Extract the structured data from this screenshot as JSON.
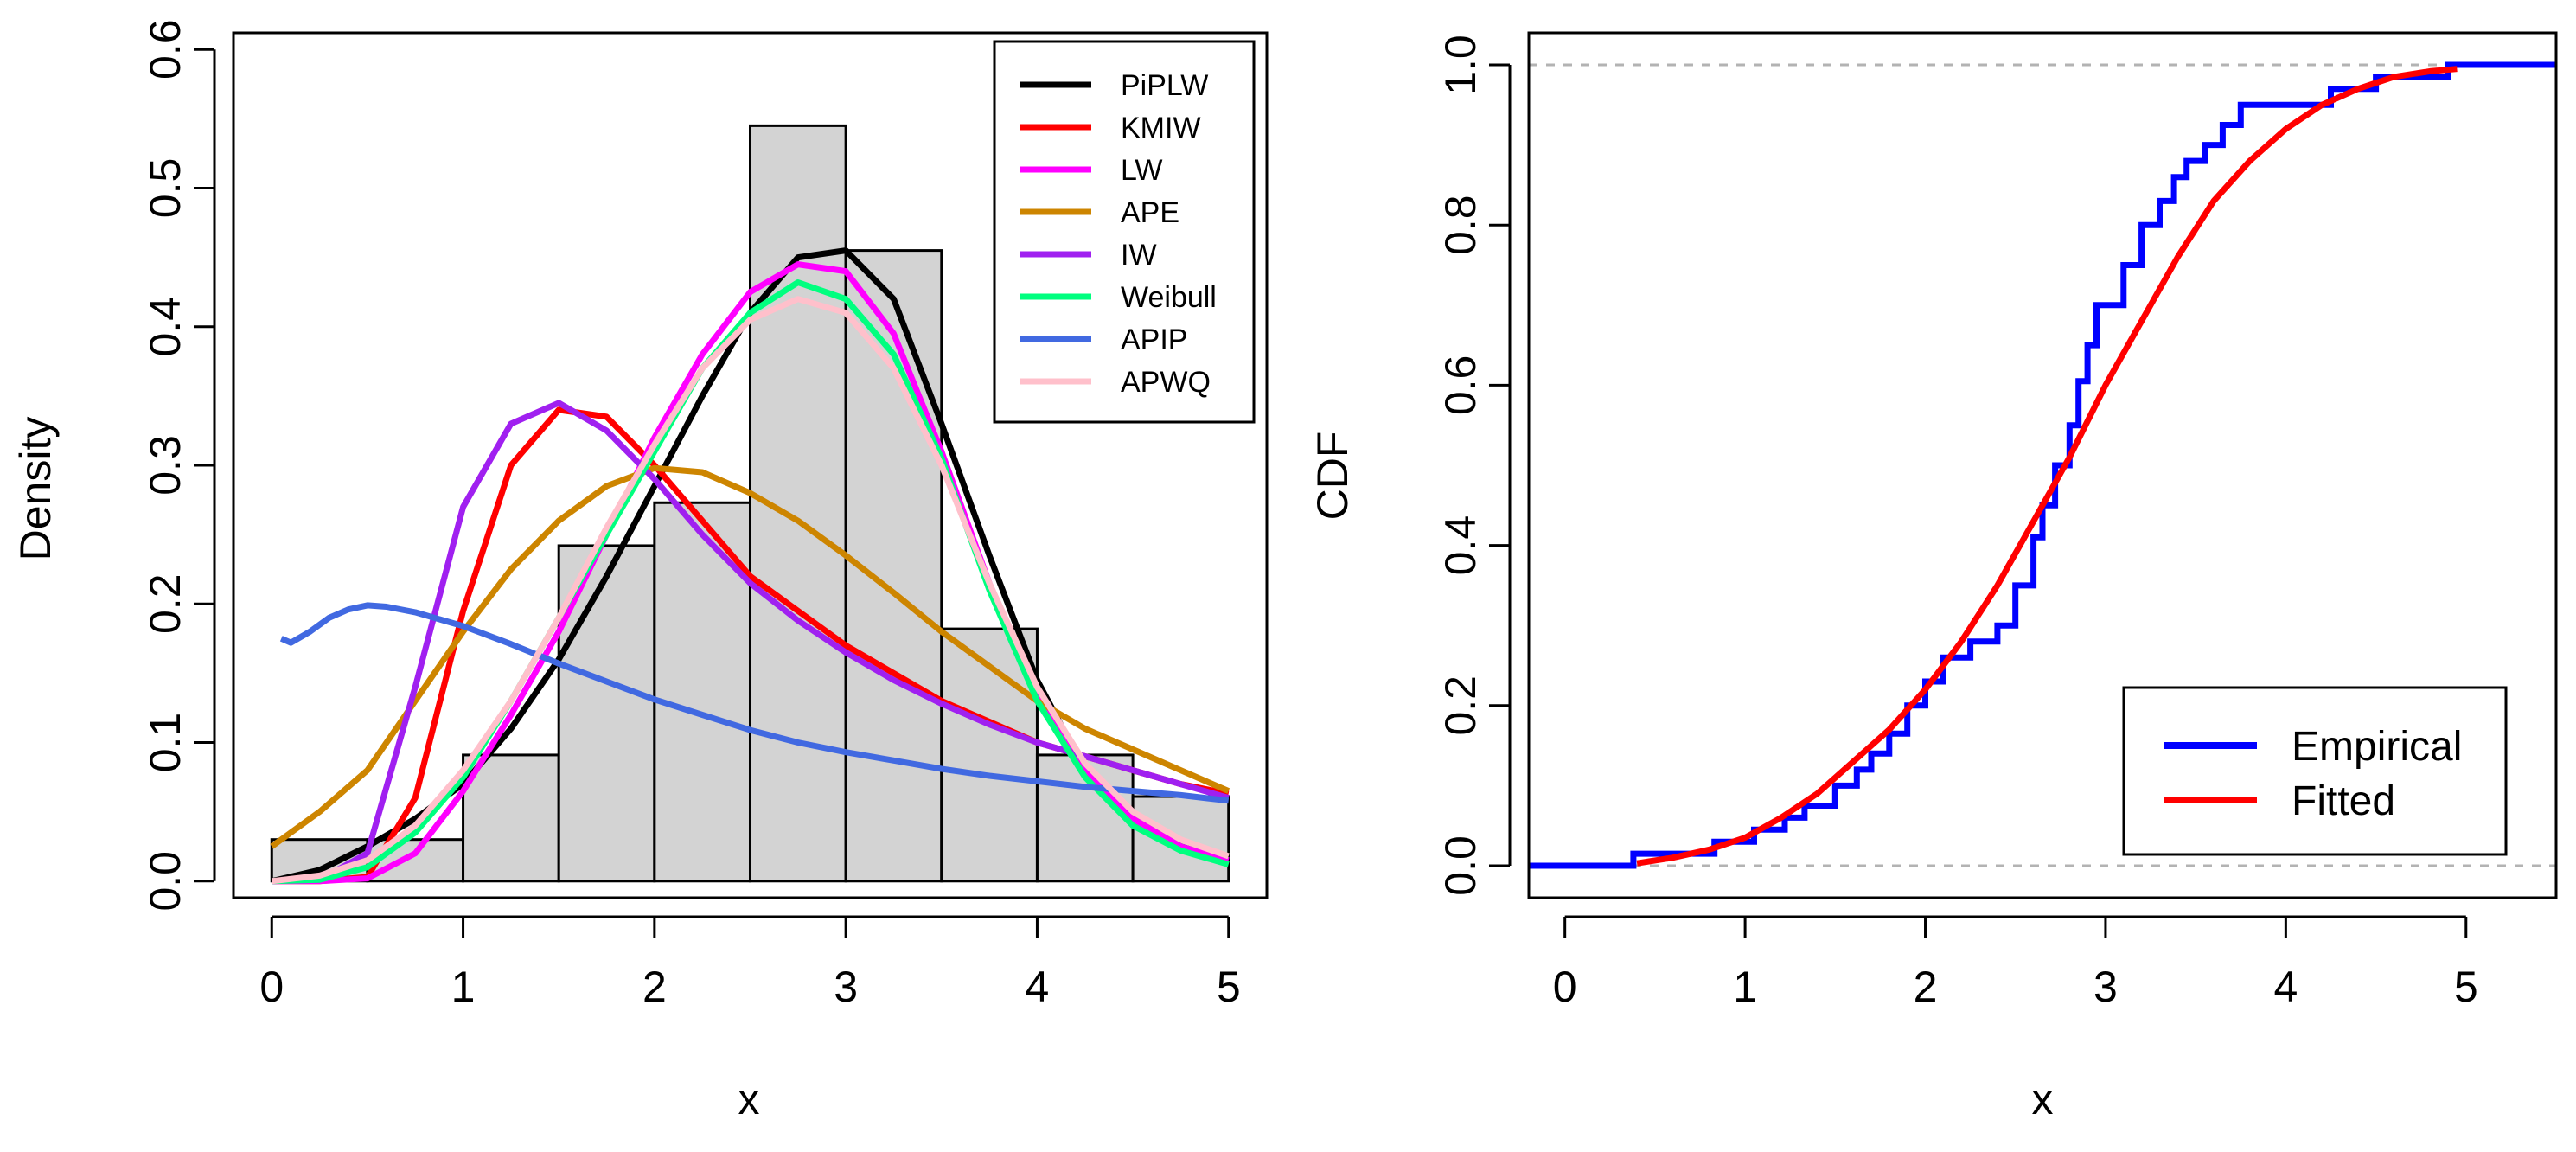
{
  "chart_data": [
    {
      "type": "histogram-density",
      "xlabel": "x",
      "ylabel": "Density",
      "xlim": [
        -0.2,
        5.2
      ],
      "ylim": [
        -0.012,
        0.612
      ],
      "xticks": [
        0,
        1,
        2,
        3,
        4,
        5
      ],
      "xtick_labels": [
        "0",
        "1",
        "2",
        "3",
        "4",
        "5"
      ],
      "yticks": [
        0.0,
        0.1,
        0.2,
        0.3,
        0.4,
        0.5,
        0.6
      ],
      "ytick_labels": [
        "0.0",
        "0.1",
        "0.2",
        "0.3",
        "0.4",
        "0.5",
        "0.6"
      ],
      "histogram": {
        "bin_edges": [
          0,
          0.5,
          1,
          1.5,
          2,
          2.5,
          3,
          3.5,
          4,
          4.5,
          5
        ],
        "densities": [
          0.03,
          0.03,
          0.091,
          0.242,
          0.273,
          0.545,
          0.455,
          0.182,
          0.091,
          0.061
        ],
        "fill": "#d3d3d3"
      },
      "legend_position": "top-right",
      "series": [
        {
          "name": "PiPLW",
          "color": "#000000",
          "x": [
            0,
            0.25,
            0.5,
            0.75,
            1,
            1.25,
            1.5,
            1.75,
            2,
            2.25,
            2.5,
            2.75,
            3,
            3.25,
            3.5,
            3.75,
            4,
            4.25,
            4.5,
            4.75,
            5
          ],
          "y": [
            0,
            0.008,
            0.025,
            0.045,
            0.07,
            0.11,
            0.16,
            0.22,
            0.285,
            0.35,
            0.41,
            0.45,
            0.455,
            0.42,
            0.33,
            0.235,
            0.145,
            0.08,
            0.045,
            0.025,
            0.015
          ]
        },
        {
          "name": "KMIW",
          "color": "#ff0000",
          "x": [
            0,
            0.25,
            0.5,
            0.75,
            1,
            1.25,
            1.5,
            1.75,
            2,
            2.25,
            2.5,
            2.75,
            3,
            3.25,
            3.5,
            3.75,
            4,
            4.25,
            4.5,
            4.75,
            5
          ],
          "y": [
            0,
            0,
            0.003,
            0.06,
            0.195,
            0.3,
            0.34,
            0.335,
            0.3,
            0.26,
            0.22,
            0.195,
            0.17,
            0.15,
            0.13,
            0.115,
            0.1,
            0.09,
            0.08,
            0.07,
            0.063
          ]
        },
        {
          "name": "LW",
          "color": "#ff00ff",
          "x": [
            0,
            0.25,
            0.5,
            0.75,
            1,
            1.25,
            1.5,
            1.75,
            2,
            2.25,
            2.5,
            2.75,
            3,
            3.25,
            3.5,
            3.75,
            4,
            4.25,
            4.5,
            4.75,
            5
          ],
          "y": [
            0,
            0,
            0.002,
            0.02,
            0.065,
            0.12,
            0.18,
            0.25,
            0.32,
            0.38,
            0.425,
            0.445,
            0.44,
            0.395,
            0.31,
            0.215,
            0.135,
            0.08,
            0.045,
            0.025,
            0.015
          ]
        },
        {
          "name": "APE",
          "color": "#cd8500",
          "x": [
            0,
            0.25,
            0.5,
            0.75,
            1,
            1.25,
            1.5,
            1.75,
            2,
            2.25,
            2.5,
            2.75,
            3,
            3.25,
            3.5,
            3.75,
            4,
            4.25,
            4.5,
            4.75,
            5
          ],
          "y": [
            0.025,
            0.05,
            0.08,
            0.13,
            0.18,
            0.225,
            0.26,
            0.285,
            0.298,
            0.295,
            0.28,
            0.26,
            0.235,
            0.208,
            0.18,
            0.155,
            0.13,
            0.11,
            0.095,
            0.08,
            0.065
          ]
        },
        {
          "name": "IW",
          "color": "#a020f0",
          "x": [
            0,
            0.25,
            0.5,
            0.75,
            1,
            1.25,
            1.5,
            1.75,
            2,
            2.25,
            2.5,
            2.75,
            3,
            3.25,
            3.5,
            3.75,
            4,
            4.25,
            4.5,
            4.75,
            5
          ],
          "y": [
            0,
            0.001,
            0.02,
            0.14,
            0.27,
            0.33,
            0.345,
            0.325,
            0.29,
            0.25,
            0.215,
            0.188,
            0.165,
            0.145,
            0.128,
            0.113,
            0.1,
            0.09,
            0.08,
            0.07,
            0.06
          ]
        },
        {
          "name": "Weibull",
          "color": "#00ff7f",
          "x": [
            0,
            0.25,
            0.5,
            0.75,
            1,
            1.25,
            1.5,
            1.75,
            2,
            2.25,
            2.5,
            2.75,
            3,
            3.25,
            3.5,
            3.75,
            4,
            4.25,
            4.5,
            4.75,
            5
          ],
          "y": [
            0,
            0.001,
            0.01,
            0.035,
            0.075,
            0.13,
            0.19,
            0.25,
            0.31,
            0.37,
            0.41,
            0.432,
            0.42,
            0.38,
            0.305,
            0.21,
            0.13,
            0.075,
            0.04,
            0.022,
            0.012
          ]
        },
        {
          "name": "APIP",
          "color": "#4169e1",
          "x": [
            0.05,
            0.1,
            0.2,
            0.3,
            0.4,
            0.5,
            0.6,
            0.75,
            1,
            1.25,
            1.5,
            1.75,
            2,
            2.25,
            2.5,
            2.75,
            3,
            3.25,
            3.5,
            3.75,
            4,
            4.25,
            4.5,
            4.75,
            5
          ],
          "y": [
            0.175,
            0.172,
            0.18,
            0.19,
            0.196,
            0.199,
            0.198,
            0.194,
            0.184,
            0.171,
            0.157,
            0.144,
            0.131,
            0.12,
            0.109,
            0.1,
            0.093,
            0.087,
            0.081,
            0.076,
            0.072,
            0.068,
            0.065,
            0.062,
            0.058
          ]
        },
        {
          "name": "APWQ",
          "color": "#ffc0cb",
          "x": [
            0,
            0.25,
            0.5,
            0.75,
            1,
            1.25,
            1.5,
            1.75,
            2,
            2.25,
            2.5,
            2.75,
            3,
            3.25,
            3.5,
            3.75,
            4,
            4.25,
            4.5,
            4.75,
            5
          ],
          "y": [
            0,
            0.004,
            0.015,
            0.04,
            0.08,
            0.13,
            0.19,
            0.255,
            0.315,
            0.37,
            0.405,
            0.42,
            0.41,
            0.37,
            0.3,
            0.215,
            0.14,
            0.085,
            0.05,
            0.03,
            0.018
          ]
        }
      ]
    },
    {
      "type": "line",
      "xlabel": "x",
      "ylabel": "CDF",
      "xlim": [
        -0.2,
        5.5
      ],
      "ylim": [
        -0.04,
        1.04
      ],
      "xticks": [
        0,
        1,
        2,
        3,
        4,
        5
      ],
      "xtick_labels": [
        "0",
        "1",
        "2",
        "3",
        "4",
        "5"
      ],
      "yticks": [
        0.0,
        0.2,
        0.4,
        0.6,
        0.8,
        1.0
      ],
      "ytick_labels": [
        "0.0",
        "0.2",
        "0.4",
        "0.6",
        "0.8",
        "1.0"
      ],
      "reference_lines": [
        0,
        1
      ],
      "legend_position": "bottom-right",
      "series": [
        {
          "name": "Empirical",
          "color": "#0000ff",
          "style": "step",
          "jumps": [
            0.38,
            0.83,
            1.05,
            1.22,
            1.33,
            1.5,
            1.62,
            1.7,
            1.8,
            1.9,
            2.0,
            2.1,
            2.25,
            2.4,
            2.5,
            2.6,
            2.65,
            2.72,
            2.8,
            2.85,
            2.9,
            2.95,
            3.1,
            3.2,
            3.3,
            3.38,
            3.45,
            3.55,
            3.65,
            3.75,
            4.25,
            4.5,
            4.9
          ],
          "levels": [
            0.0,
            0.015,
            0.03,
            0.045,
            0.06,
            0.075,
            0.1,
            0.12,
            0.14,
            0.165,
            0.2,
            0.23,
            0.26,
            0.28,
            0.3,
            0.35,
            0.41,
            0.45,
            0.5,
            0.55,
            0.605,
            0.65,
            0.7,
            0.75,
            0.8,
            0.83,
            0.86,
            0.88,
            0.9,
            0.925,
            0.95,
            0.97,
            0.985,
            1.0
          ]
        },
        {
          "name": "Fitted",
          "color": "#ff0000",
          "style": "line",
          "x": [
            0.4,
            0.6,
            0.8,
            1.0,
            1.2,
            1.4,
            1.6,
            1.8,
            2.0,
            2.2,
            2.4,
            2.6,
            2.8,
            3.0,
            3.2,
            3.4,
            3.6,
            3.8,
            4.0,
            4.2,
            4.4,
            4.6,
            4.8,
            4.95
          ],
          "y": [
            0.003,
            0.01,
            0.02,
            0.035,
            0.06,
            0.09,
            0.13,
            0.17,
            0.22,
            0.28,
            0.35,
            0.43,
            0.51,
            0.6,
            0.68,
            0.76,
            0.83,
            0.88,
            0.92,
            0.95,
            0.97,
            0.985,
            0.992,
            0.995
          ]
        }
      ]
    }
  ]
}
